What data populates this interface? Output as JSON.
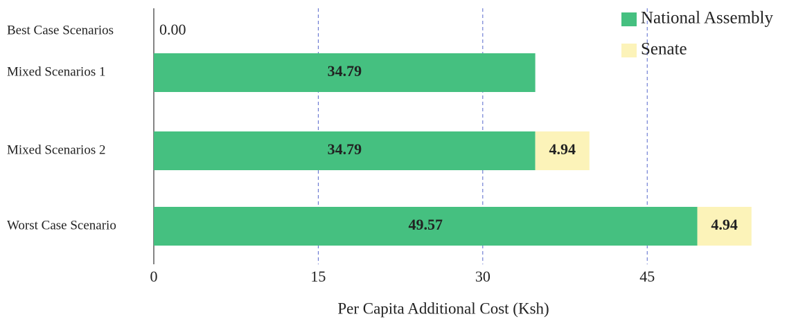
{
  "chart_data": {
    "type": "stacked-barh",
    "categories": [
      "Best Case Scenarios",
      "Mixed Scenarios 1",
      "Mixed Scenarios 2",
      "Worst Case Scenario"
    ],
    "series": [
      {
        "name": "National Assembly",
        "color": "#45c080",
        "values": [
          0,
          34.79,
          34.79,
          49.57
        ],
        "value_labels": [
          "0.00",
          "34.79",
          "34.79",
          "49.57"
        ]
      },
      {
        "name": "Senate",
        "color": "#fcf3b9",
        "values": [
          null,
          null,
          4.94,
          4.94
        ]
      }
    ],
    "xlabel": "Per Capita Additional Cost (Ksh)",
    "xlim": [
      0,
      58
    ],
    "xticks": [
      0,
      15,
      30,
      45
    ],
    "grid": true,
    "legend": "upper right"
  }
}
